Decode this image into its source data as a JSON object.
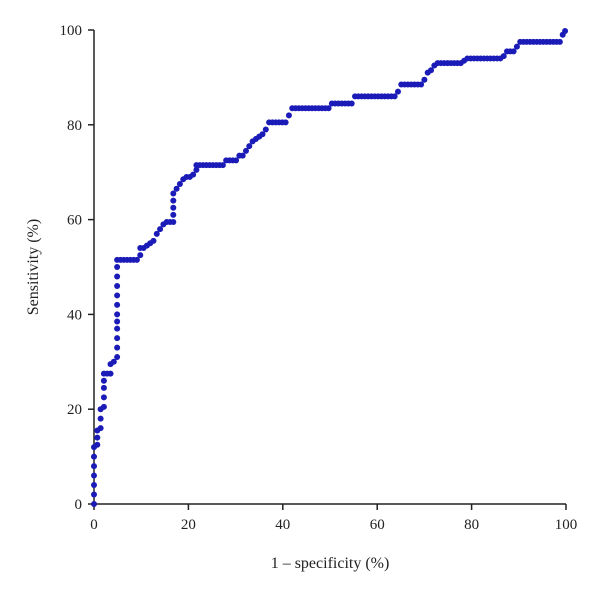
{
  "chart_data": {
    "type": "scatter",
    "title": "",
    "xlabel": "1 – specificity (%)",
    "ylabel": "Sensitivity (%)",
    "xlim": [
      0,
      100
    ],
    "ylim": [
      0,
      100
    ],
    "xticks": [
      "0",
      "20",
      "40",
      "60",
      "80",
      "100"
    ],
    "yticks": [
      "0",
      "20",
      "40",
      "60",
      "80",
      "100"
    ],
    "grid": false,
    "legend": "none",
    "series": [
      {
        "color": "#1b1bb8",
        "points": [
          [
            0,
            0
          ],
          [
            0,
            2
          ],
          [
            0,
            4
          ],
          [
            0,
            6
          ],
          [
            0,
            8
          ],
          [
            0,
            10
          ],
          [
            0,
            12
          ],
          [
            0.7,
            12.5
          ],
          [
            0.7,
            14
          ],
          [
            0.7,
            15.5
          ],
          [
            1.4,
            16
          ],
          [
            1.4,
            18
          ],
          [
            1.4,
            20
          ],
          [
            2.1,
            20.5
          ],
          [
            2.1,
            22.5
          ],
          [
            2.1,
            24.5
          ],
          [
            2.1,
            26
          ],
          [
            2.1,
            27.5
          ],
          [
            2.8,
            27.5
          ],
          [
            3.5,
            27.5
          ],
          [
            3.5,
            29.5
          ],
          [
            4.2,
            30
          ],
          [
            4.9,
            31
          ],
          [
            4.9,
            33
          ],
          [
            4.9,
            35
          ],
          [
            4.9,
            37
          ],
          [
            4.9,
            38.5
          ],
          [
            4.9,
            40
          ],
          [
            4.9,
            42
          ],
          [
            4.9,
            44
          ],
          [
            4.9,
            46
          ],
          [
            4.9,
            48
          ],
          [
            4.9,
            50
          ],
          [
            4.9,
            51.5
          ],
          [
            5.6,
            51.5
          ],
          [
            6.3,
            51.5
          ],
          [
            7,
            51.5
          ],
          [
            7.7,
            51.5
          ],
          [
            8.4,
            51.5
          ],
          [
            9.1,
            51.5
          ],
          [
            9.8,
            52.5
          ],
          [
            9.8,
            54
          ],
          [
            10.5,
            54
          ],
          [
            11.2,
            54.5
          ],
          [
            11.9,
            55
          ],
          [
            12.6,
            55.5
          ],
          [
            13.3,
            57
          ],
          [
            14,
            58
          ],
          [
            14.7,
            59
          ],
          [
            15.4,
            59.5
          ],
          [
            16.1,
            59.5
          ],
          [
            16.8,
            59.5
          ],
          [
            16.8,
            61
          ],
          [
            16.8,
            62.5
          ],
          [
            16.8,
            64
          ],
          [
            16.8,
            65.5
          ],
          [
            17.5,
            66.5
          ],
          [
            18.2,
            67.5
          ],
          [
            18.9,
            68.5
          ],
          [
            19.6,
            69
          ],
          [
            20.3,
            69
          ],
          [
            21,
            69.5
          ],
          [
            21.7,
            70.5
          ],
          [
            21.7,
            71.5
          ],
          [
            22.4,
            71.5
          ],
          [
            23.1,
            71.5
          ],
          [
            23.8,
            71.5
          ],
          [
            24.5,
            71.5
          ],
          [
            25.2,
            71.5
          ],
          [
            25.9,
            71.5
          ],
          [
            26.6,
            71.5
          ],
          [
            27.3,
            71.5
          ],
          [
            28,
            72.5
          ],
          [
            28.7,
            72.5
          ],
          [
            29.4,
            72.5
          ],
          [
            30.1,
            72.5
          ],
          [
            30.8,
            73.5
          ],
          [
            31.5,
            73.5
          ],
          [
            32.2,
            74.5
          ],
          [
            32.9,
            75.5
          ],
          [
            33.6,
            76.5
          ],
          [
            34.3,
            77
          ],
          [
            35,
            77.5
          ],
          [
            35.7,
            78
          ],
          [
            36.4,
            79
          ],
          [
            37.1,
            80.5
          ],
          [
            37.8,
            80.5
          ],
          [
            38.5,
            80.5
          ],
          [
            39.2,
            80.5
          ],
          [
            39.9,
            80.5
          ],
          [
            40.6,
            80.5
          ],
          [
            41.3,
            82
          ],
          [
            42,
            83.5
          ],
          [
            42.7,
            83.5
          ],
          [
            43.4,
            83.5
          ],
          [
            44.1,
            83.5
          ],
          [
            44.8,
            83.5
          ],
          [
            45.5,
            83.5
          ],
          [
            46.2,
            83.5
          ],
          [
            46.9,
            83.5
          ],
          [
            47.6,
            83.5
          ],
          [
            48.3,
            83.5
          ],
          [
            49,
            83.5
          ],
          [
            49.7,
            83.5
          ],
          [
            50.4,
            84.5
          ],
          [
            51.1,
            84.5
          ],
          [
            51.8,
            84.5
          ],
          [
            52.5,
            84.5
          ],
          [
            53.2,
            84.5
          ],
          [
            53.9,
            84.5
          ],
          [
            54.6,
            84.5
          ],
          [
            55.3,
            86
          ],
          [
            56,
            86
          ],
          [
            56.7,
            86
          ],
          [
            57.4,
            86
          ],
          [
            58.1,
            86
          ],
          [
            58.8,
            86
          ],
          [
            59.5,
            86
          ],
          [
            60.2,
            86
          ],
          [
            60.9,
            86
          ],
          [
            61.6,
            86
          ],
          [
            62.3,
            86
          ],
          [
            63,
            86
          ],
          [
            63.7,
            86
          ],
          [
            64.4,
            87
          ],
          [
            65.1,
            88.5
          ],
          [
            65.8,
            88.5
          ],
          [
            66.5,
            88.5
          ],
          [
            67.2,
            88.5
          ],
          [
            67.9,
            88.5
          ],
          [
            68.6,
            88.5
          ],
          [
            69.3,
            88.5
          ],
          [
            70,
            89.5
          ],
          [
            70.7,
            91
          ],
          [
            71.4,
            91.5
          ],
          [
            72.1,
            92.5
          ],
          [
            72.8,
            93
          ],
          [
            73.5,
            93
          ],
          [
            74.2,
            93
          ],
          [
            74.9,
            93
          ],
          [
            75.6,
            93
          ],
          [
            76.3,
            93
          ],
          [
            77,
            93
          ],
          [
            77.7,
            93
          ],
          [
            78.4,
            93.5
          ],
          [
            79.1,
            94
          ],
          [
            79.8,
            94
          ],
          [
            80.5,
            94
          ],
          [
            81.2,
            94
          ],
          [
            81.9,
            94
          ],
          [
            82.6,
            94
          ],
          [
            83.3,
            94
          ],
          [
            84,
            94
          ],
          [
            84.7,
            94
          ],
          [
            85.4,
            94
          ],
          [
            86.1,
            94
          ],
          [
            86.8,
            94.5
          ],
          [
            87.5,
            95.5
          ],
          [
            88.2,
            95.5
          ],
          [
            88.9,
            95.5
          ],
          [
            89.6,
            96.5
          ],
          [
            90.3,
            97.5
          ],
          [
            91,
            97.5
          ],
          [
            91.7,
            97.5
          ],
          [
            92.4,
            97.5
          ],
          [
            93.1,
            97.5
          ],
          [
            93.8,
            97.5
          ],
          [
            94.5,
            97.5
          ],
          [
            95.2,
            97.5
          ],
          [
            95.9,
            97.5
          ],
          [
            96.6,
            97.5
          ],
          [
            97.3,
            97.5
          ],
          [
            98,
            97.5
          ],
          [
            98.7,
            97.5
          ],
          [
            99.3,
            99
          ],
          [
            99.8,
            99.8
          ]
        ]
      }
    ]
  }
}
